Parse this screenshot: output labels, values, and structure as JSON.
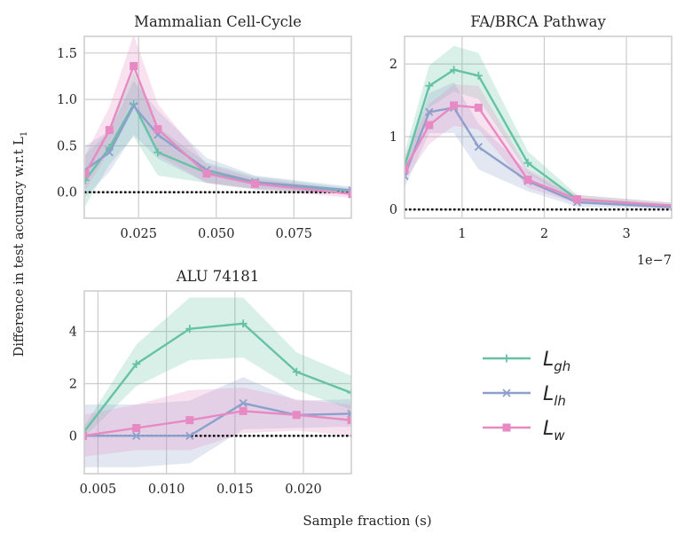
{
  "figure": {
    "shared_ylabel": "Difference in test accuracy w.r.t L",
    "shared_ylabel_sub": "1",
    "shared_xlabel": "Sample fraction (s)",
    "legend": [
      {
        "name": "L",
        "sub": "gh",
        "color": "#66c2a5",
        "marker": "plus"
      },
      {
        "name": "L",
        "sub": "lh",
        "color": "#8da0cb",
        "marker": "x"
      },
      {
        "name": "L",
        "sub": "w",
        "color": "#e78ac3",
        "marker": "square"
      }
    ]
  },
  "chart_data": [
    {
      "type": "line",
      "title": "Mammalian Cell-Cycle",
      "xlim": [
        0.0075,
        0.0935
      ],
      "ylim": [
        -0.28,
        1.68
      ],
      "xticks": [
        0.025,
        0.05,
        0.075
      ],
      "xtick_labels": [
        "0.025",
        "0.050",
        "0.075"
      ],
      "yticks": [
        0.0,
        0.5,
        1.0,
        1.5
      ],
      "ytick_labels": [
        "0.0",
        "0.5",
        "1.0",
        "1.5"
      ],
      "xscale_label": "",
      "baseline": 0,
      "series": [
        {
          "name": "gh",
          "x": [
            0.0078,
            0.0156,
            0.0234,
            0.0312,
            0.0469,
            0.0625,
            0.0938
          ],
          "y": [
            0.13,
            0.48,
            0.95,
            0.43,
            0.21,
            0.1,
            0.01
          ],
          "lo": [
            -0.15,
            0.3,
            0.6,
            0.18,
            0.1,
            0.03,
            -0.02
          ],
          "hi": [
            0.4,
            0.66,
            1.3,
            0.7,
            0.32,
            0.17,
            0.04
          ]
        },
        {
          "name": "lh",
          "x": [
            0.0078,
            0.0156,
            0.0234,
            0.0312,
            0.0469,
            0.0625,
            0.0938
          ],
          "y": [
            0.24,
            0.43,
            0.93,
            0.62,
            0.24,
            0.11,
            0.02
          ],
          "lo": [
            -0.05,
            0.22,
            0.62,
            0.36,
            0.1,
            0.04,
            -0.02
          ],
          "hi": [
            0.5,
            0.66,
            1.2,
            0.88,
            0.37,
            0.18,
            0.06
          ]
        },
        {
          "name": "w",
          "x": [
            0.0078,
            0.0156,
            0.0234,
            0.0312,
            0.0469,
            0.0625,
            0.0938
          ],
          "y": [
            0.2,
            0.67,
            1.36,
            0.68,
            0.2,
            0.09,
            -0.02
          ],
          "lo": [
            0.02,
            0.45,
            1.02,
            0.4,
            0.1,
            0.03,
            -0.06
          ],
          "hi": [
            0.4,
            0.92,
            1.7,
            0.95,
            0.3,
            0.15,
            0.02
          ]
        }
      ]
    },
    {
      "type": "line",
      "title": "FA/BRCA Pathway",
      "xlim": [
        0.3,
        3.55
      ],
      "ylim": [
        -0.12,
        2.38
      ],
      "xticks": [
        1,
        2,
        3
      ],
      "xtick_labels": [
        "1",
        "2",
        "3"
      ],
      "yticks": [
        0,
        1,
        2
      ],
      "ytick_labels": [
        "0",
        "1",
        "2"
      ],
      "xscale_label": "1e−7",
      "baseline": 0,
      "series": [
        {
          "name": "gh",
          "x": [
            0.3,
            0.6,
            0.9,
            1.2,
            1.8,
            2.4,
            3.6
          ],
          "y": [
            0.6,
            1.7,
            1.92,
            1.84,
            0.64,
            0.14,
            0.05
          ],
          "lo": [
            0.45,
            1.4,
            1.62,
            1.52,
            0.5,
            0.08,
            0.01
          ],
          "hi": [
            0.78,
            1.98,
            2.25,
            2.15,
            0.8,
            0.2,
            0.09
          ]
        },
        {
          "name": "lh",
          "x": [
            0.3,
            0.6,
            0.9,
            1.2,
            1.8,
            2.4,
            3.6
          ],
          "y": [
            0.46,
            1.34,
            1.4,
            0.86,
            0.39,
            0.1,
            0.03
          ],
          "lo": [
            0.3,
            1.05,
            1.05,
            0.55,
            0.25,
            0.04,
            0.0
          ],
          "hi": [
            0.62,
            1.6,
            1.75,
            1.18,
            0.52,
            0.16,
            0.06
          ]
        },
        {
          "name": "w",
          "x": [
            0.3,
            0.6,
            0.9,
            1.2,
            1.8,
            2.4,
            3.6
          ],
          "y": [
            0.55,
            1.16,
            1.43,
            1.4,
            0.41,
            0.14,
            0.05
          ],
          "lo": [
            0.4,
            0.9,
            1.15,
            1.1,
            0.3,
            0.08,
            0.01
          ],
          "hi": [
            0.72,
            1.45,
            1.72,
            1.7,
            0.55,
            0.2,
            0.09
          ]
        }
      ]
    },
    {
      "type": "line",
      "title": "ALU 74181",
      "xlim": [
        0.004,
        0.0235
      ],
      "ylim": [
        -1.45,
        5.55
      ],
      "xticks": [
        0.005,
        0.01,
        0.015,
        0.02
      ],
      "xtick_labels": [
        "0.005",
        "0.010",
        "0.015",
        "0.020"
      ],
      "yticks": [
        0,
        2,
        4
      ],
      "ytick_labels": [
        "0",
        "2",
        "4"
      ],
      "xscale_label": "",
      "baseline": 0,
      "series": [
        {
          "name": "gh",
          "x": [
            0.0039,
            0.0078,
            0.0117,
            0.0156,
            0.0195,
            0.0235
          ],
          "y": [
            0.1,
            2.75,
            4.1,
            4.3,
            2.45,
            1.65
          ],
          "lo": [
            -0.1,
            1.9,
            2.9,
            3.0,
            1.75,
            1.0
          ],
          "hi": [
            0.3,
            3.5,
            5.3,
            5.3,
            3.2,
            2.3
          ]
        },
        {
          "name": "lh",
          "x": [
            0.0039,
            0.0078,
            0.0117,
            0.0156,
            0.0195,
            0.0235
          ],
          "y": [
            0.0,
            0.0,
            0.0,
            1.25,
            0.8,
            0.85
          ],
          "lo": [
            -1.2,
            -1.2,
            -1.05,
            0.25,
            0.3,
            0.35
          ],
          "hi": [
            1.2,
            1.2,
            1.35,
            2.25,
            1.35,
            1.4
          ]
        },
        {
          "name": "w",
          "x": [
            0.0039,
            0.0078,
            0.0117,
            0.0156,
            0.0195,
            0.0235
          ],
          "y": [
            0.0,
            0.3,
            0.6,
            0.95,
            0.8,
            0.6
          ],
          "lo": [
            -0.8,
            -0.55,
            -0.55,
            0.1,
            0.2,
            0.0
          ],
          "hi": [
            0.8,
            1.2,
            1.75,
            1.85,
            1.4,
            1.2
          ]
        }
      ]
    }
  ]
}
